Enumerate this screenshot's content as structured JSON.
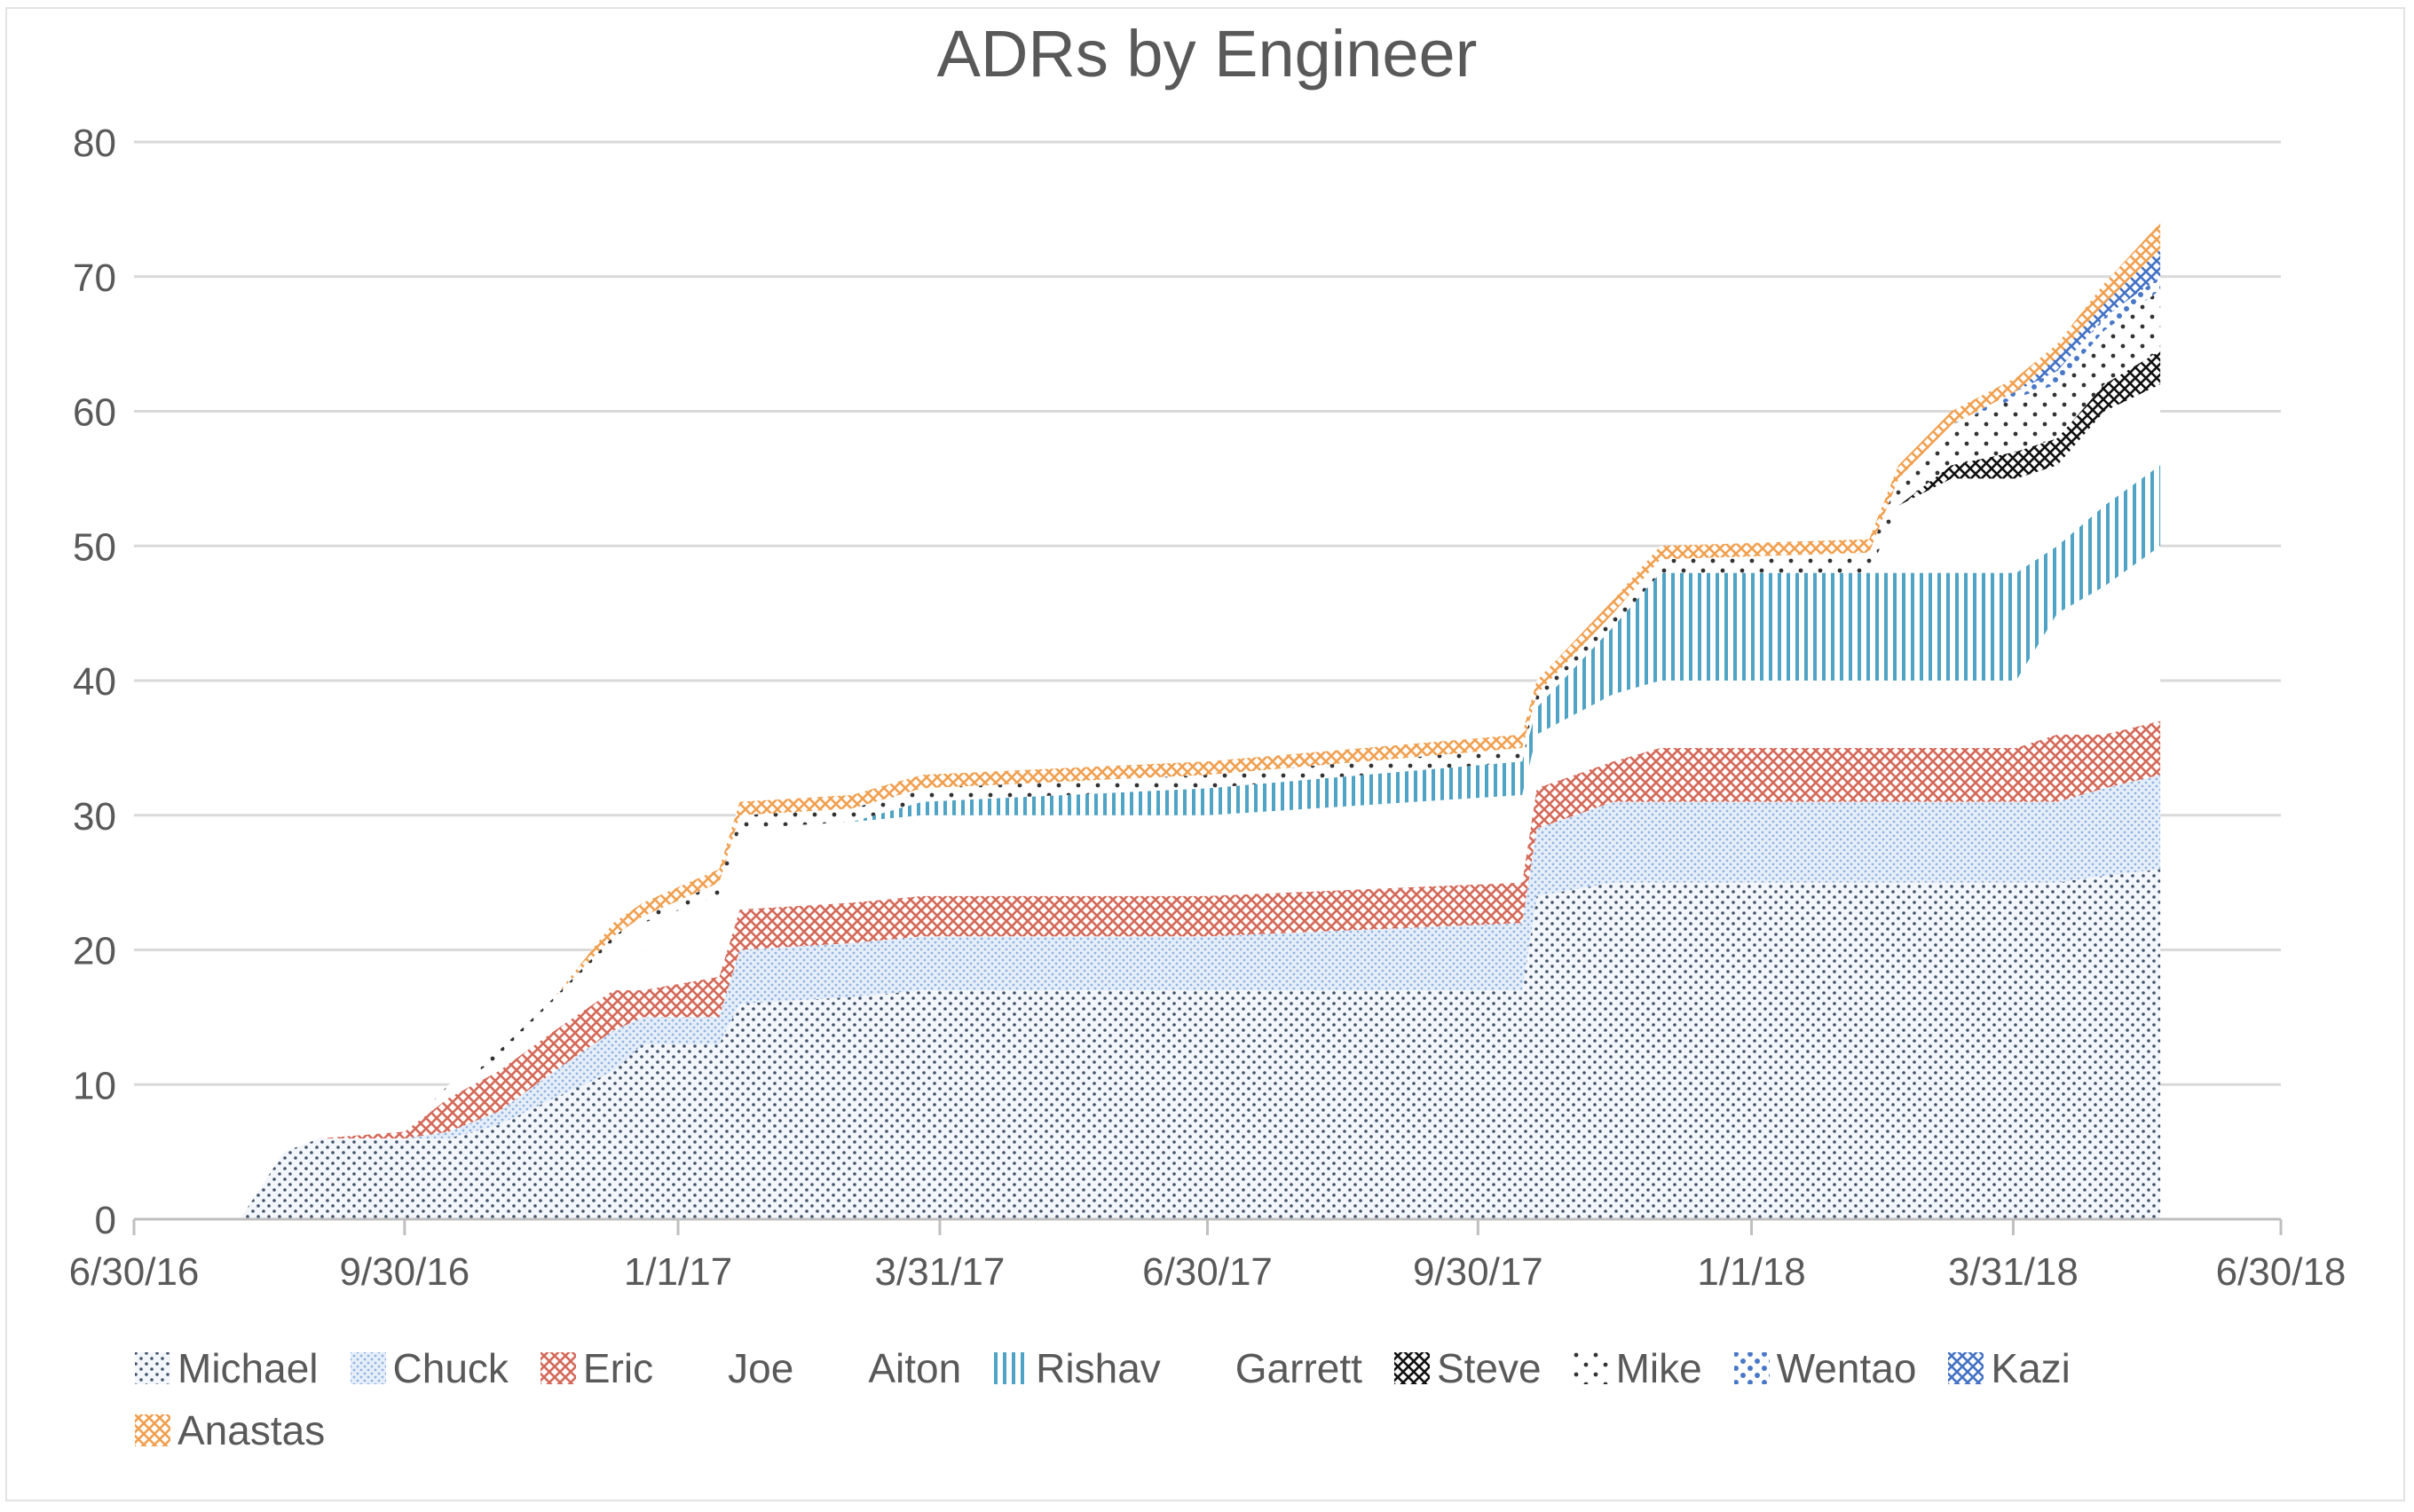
{
  "chart_data": {
    "type": "area",
    "stacked": true,
    "title": "ADRs by Engineer",
    "xlabel": "",
    "ylabel": "",
    "ylim": [
      0,
      80
    ],
    "yticks": [
      "0",
      "10",
      "20",
      "30",
      "40",
      "50",
      "60",
      "70",
      "80"
    ],
    "xlim": [
      "2016-06-30",
      "2018-06-30"
    ],
    "xticks": [
      {
        "date": "2016-06-30",
        "label": "6/30/16"
      },
      {
        "date": "2016-09-30",
        "label": "9/30/16"
      },
      {
        "date": "2017-01-01",
        "label": "1/1/17"
      },
      {
        "date": "2017-03-31",
        "label": "3/31/17"
      },
      {
        "date": "2017-06-30",
        "label": "6/30/17"
      },
      {
        "date": "2017-09-30",
        "label": "9/30/17"
      },
      {
        "date": "2018-01-01",
        "label": "1/1/18"
      },
      {
        "date": "2018-03-31",
        "label": "3/31/18"
      },
      {
        "date": "2018-06-30",
        "label": "6/30/18"
      }
    ],
    "grid": true,
    "legend": "bottom",
    "x": [
      "2016-08-05",
      "2016-08-20",
      "2016-09-01",
      "2016-09-30",
      "2016-10-15",
      "2016-11-01",
      "2016-11-20",
      "2016-12-10",
      "2016-12-20",
      "2017-01-15",
      "2017-01-22",
      "2017-03-01",
      "2017-03-25",
      "2017-06-30",
      "2017-10-15",
      "2017-10-20",
      "2017-11-15",
      "2017-12-01",
      "2018-02-10",
      "2018-02-20",
      "2018-03-10",
      "2018-04-01",
      "2018-04-15",
      "2018-05-01",
      "2018-05-20"
    ],
    "series": [
      {
        "name": "Michael",
        "pattern": "dots-fine",
        "color": "#44546a",
        "values": [
          0,
          5,
          6,
          6,
          6,
          7,
          9,
          11,
          13,
          13,
          16,
          16.5,
          17,
          17,
          17,
          24,
          25,
          25,
          25,
          25,
          25,
          25,
          25,
          25.5,
          26
        ]
      },
      {
        "name": "Chuck",
        "pattern": "dots-dense",
        "color": "#8fb4e3",
        "values": [
          0,
          0,
          0,
          0,
          0.5,
          1,
          2,
          3,
          2,
          2,
          4,
          4,
          4,
          4,
          5,
          5,
          6,
          6,
          6,
          6,
          6,
          6,
          6,
          6.5,
          7
        ]
      },
      {
        "name": "Eric",
        "pattern": "crosshatch",
        "color": "#d46a5a",
        "values": [
          0,
          0,
          0,
          0.5,
          2.5,
          3,
          3,
          3,
          2,
          3,
          3,
          3,
          3,
          3,
          3,
          3,
          3,
          4,
          4,
          4,
          4,
          4,
          5,
          4,
          4
        ]
      },
      {
        "name": "Joe",
        "pattern": "none",
        "color": "#ffffff",
        "values": [
          0,
          0,
          0,
          0,
          0.5,
          1,
          2,
          2,
          3,
          4,
          3,
          3,
          3,
          3,
          3,
          2,
          2,
          2,
          2,
          2,
          2,
          2,
          3,
          4,
          5
        ]
      },
      {
        "name": "Aiton",
        "pattern": "none",
        "color": "#ffffff",
        "values": [
          0,
          0,
          0,
          0,
          0,
          0,
          0,
          1.5,
          2,
          2,
          3,
          3,
          3,
          3,
          3.5,
          2,
          3,
          3,
          3,
          3,
          3,
          3,
          6,
          7,
          8
        ]
      },
      {
        "name": "Rishav",
        "pattern": "vlines",
        "color": "#4fa3c4",
        "values": [
          0,
          0,
          0,
          0,
          0,
          0,
          0,
          0,
          0,
          0,
          0,
          0,
          1,
          2,
          2.5,
          2,
          5,
          8,
          8,
          8,
          8,
          8,
          5,
          6,
          6
        ]
      },
      {
        "name": "Garrett",
        "pattern": "none",
        "color": "#ffffff",
        "values": [
          0,
          0,
          0,
          0,
          0,
          0,
          0,
          0,
          0,
          0,
          0,
          0,
          0,
          0,
          0,
          0,
          0,
          0,
          0,
          5,
          7,
          7,
          6,
          7,
          6
        ]
      },
      {
        "name": "Steve",
        "pattern": "crosshatch",
        "color": "#111111",
        "values": [
          0,
          0,
          0,
          0,
          0,
          0,
          0,
          0,
          0,
          0,
          0,
          0,
          0,
          0,
          0,
          0,
          0,
          0,
          0,
          0,
          1,
          2,
          2,
          2,
          2.5
        ]
      },
      {
        "name": "Mike",
        "pattern": "dots-sparse",
        "color": "#333333",
        "values": [
          0,
          0,
          0,
          0,
          0.5,
          0.5,
          0.5,
          0.5,
          0.5,
          1,
          1,
          1,
          1,
          1,
          1,
          1,
          1,
          1,
          1.5,
          2,
          3,
          4,
          4,
          4,
          4.5
        ]
      },
      {
        "name": "Wentao",
        "pattern": "dots-large",
        "color": "#4a78c8",
        "values": [
          0,
          0,
          0,
          0,
          0,
          0,
          0,
          0,
          0,
          0,
          0,
          0,
          0,
          0,
          0,
          0,
          0,
          0,
          0,
          0,
          0,
          0.5,
          1,
          1,
          1
        ]
      },
      {
        "name": "Kazi",
        "pattern": "crosshatch",
        "color": "#4472c4",
        "values": [
          0,
          0,
          0,
          0,
          0,
          0,
          0,
          0,
          0,
          0,
          0,
          0,
          0,
          0,
          0,
          0,
          0,
          0,
          0,
          0,
          0,
          0,
          1,
          1,
          2
        ]
      },
      {
        "name": "Anastas",
        "pattern": "crosshatch",
        "color": "#f0a050",
        "values": [
          0,
          0,
          0,
          0,
          0,
          0,
          0,
          1,
          1,
          1,
          1,
          1,
          1,
          1,
          1,
          1,
          1,
          1,
          1,
          1,
          1,
          1,
          1,
          1.5,
          2
        ]
      }
    ]
  }
}
